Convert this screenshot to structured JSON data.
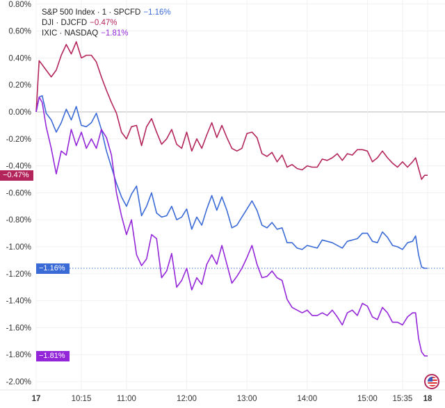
{
  "chart_data": {
    "type": "line",
    "legend_placement": "top-left",
    "grid": true,
    "ylim": [
      -2.0,
      0.8
    ],
    "y_ticks": [
      "0.80%",
      "0.60%",
      "0.40%",
      "0.20%",
      "0.00%",
      "-0.20%",
      "-0.40%",
      "-0.60%",
      "-0.80%",
      "-1.00%",
      "-1.20%",
      "-1.40%",
      "-1.60%",
      "-1.80%",
      "-2.00%"
    ],
    "x_ticks": [
      {
        "label": "17",
        "time": "09:30",
        "bold": true
      },
      {
        "label": "10:15",
        "time": "10:15"
      },
      {
        "label": "11:00",
        "time": "11:00"
      },
      {
        "label": "12:00",
        "time": "12:00"
      },
      {
        "label": "13:00",
        "time": "13:00"
      },
      {
        "label": "14:00",
        "time": "14:00"
      },
      {
        "label": "15:00",
        "time": "15:00"
      },
      {
        "label": "15:35",
        "time": "15:35"
      },
      {
        "label": "18",
        "time": "16:00",
        "bold": true
      }
    ],
    "x": [
      "09:30",
      "09:33",
      "09:36",
      "09:40",
      "09:45",
      "09:50",
      "09:55",
      "10:00",
      "10:05",
      "10:10",
      "10:15",
      "10:20",
      "10:25",
      "10:30",
      "10:35",
      "10:40",
      "10:45",
      "10:50",
      "10:55",
      "11:00",
      "11:05",
      "11:10",
      "11:15",
      "11:20",
      "11:25",
      "11:30",
      "11:35",
      "11:40",
      "11:45",
      "11:50",
      "11:55",
      "12:00",
      "12:05",
      "12:10",
      "12:15",
      "12:20",
      "12:25",
      "12:30",
      "12:35",
      "12:40",
      "12:45",
      "12:50",
      "12:55",
      "13:00",
      "13:05",
      "13:10",
      "13:15",
      "13:20",
      "13:25",
      "13:30",
      "13:35",
      "13:40",
      "13:45",
      "13:50",
      "13:55",
      "14:00",
      "14:05",
      "14:10",
      "14:15",
      "14:20",
      "14:25",
      "14:30",
      "14:35",
      "14:40",
      "14:45",
      "14:50",
      "14:55",
      "15:00",
      "15:05",
      "15:10",
      "15:15",
      "15:20",
      "15:25",
      "15:30",
      "15:35",
      "15:40",
      "15:45",
      "15:48",
      "15:51",
      "15:54",
      "15:57",
      "16:00"
    ],
    "series": [
      {
        "name": "S&P 500 Index · 1 · SPCFD",
        "change": "−1.16%",
        "last": "−1.16%",
        "color": "#3a6ad6",
        "values": [
          0,
          0.11,
          0.12,
          -0.01,
          -0.06,
          -0.15,
          -0.08,
          0.02,
          -0.06,
          0.04,
          -0.1,
          -0.11,
          -0.08,
          -0.01,
          -0.13,
          -0.29,
          -0.41,
          -0.53,
          -0.63,
          -0.7,
          -0.61,
          -0.55,
          -0.77,
          -0.7,
          -0.6,
          -0.75,
          -0.78,
          -0.77,
          -0.7,
          -0.8,
          -0.78,
          -0.72,
          -0.87,
          -0.78,
          -0.84,
          -0.72,
          -0.62,
          -0.73,
          -0.63,
          -0.73,
          -0.86,
          -0.84,
          -0.78,
          -0.72,
          -0.66,
          -0.73,
          -0.84,
          -0.86,
          -0.82,
          -0.87,
          -0.86,
          -0.97,
          -0.97,
          -1.01,
          -1.02,
          -0.99,
          -1.0,
          -1.01,
          -0.95,
          -0.96,
          -0.97,
          -0.99,
          -1.01,
          -0.96,
          -0.95,
          -0.94,
          -0.9,
          -0.9,
          -0.96,
          -0.97,
          -0.89,
          -0.93,
          -0.99,
          -1.0,
          -1.02,
          -0.97,
          -0.96,
          -0.92,
          -1.06,
          -1.15,
          -1.16,
          -1.16
        ]
      },
      {
        "name": "DJI · DJCFD",
        "change": "−0.47%",
        "last": "−0.47%",
        "color": "#b3245a",
        "values": [
          0,
          0.38,
          0.35,
          0.31,
          0.26,
          0.31,
          0.42,
          0.5,
          0.43,
          0.52,
          0.4,
          0.42,
          0.42,
          0.37,
          0.26,
          0.16,
          0.07,
          -0.01,
          -0.15,
          -0.2,
          -0.11,
          -0.1,
          -0.25,
          -0.11,
          -0.05,
          -0.15,
          -0.24,
          -0.2,
          -0.13,
          -0.24,
          -0.27,
          -0.15,
          -0.29,
          -0.2,
          -0.27,
          -0.17,
          -0.08,
          -0.19,
          -0.1,
          -0.19,
          -0.27,
          -0.29,
          -0.27,
          -0.16,
          -0.15,
          -0.19,
          -0.31,
          -0.33,
          -0.3,
          -0.37,
          -0.32,
          -0.41,
          -0.39,
          -0.42,
          -0.43,
          -0.4,
          -0.41,
          -0.41,
          -0.35,
          -0.36,
          -0.34,
          -0.31,
          -0.36,
          -0.31,
          -0.32,
          -0.28,
          -0.28,
          -0.29,
          -0.37,
          -0.34,
          -0.29,
          -0.34,
          -0.38,
          -0.41,
          -0.37,
          -0.41,
          -0.37,
          -0.34,
          -0.42,
          -0.5,
          -0.47,
          -0.47
        ]
      },
      {
        "name": "IXIC · NASDAQ",
        "change": "−1.81%",
        "last": "−1.81%",
        "color": "#9426d9",
        "values": [
          0,
          0.11,
          0.07,
          -0.11,
          -0.27,
          -0.46,
          -0.29,
          -0.32,
          -0.13,
          -0.25,
          -0.15,
          -0.27,
          -0.2,
          -0.27,
          -0.13,
          -0.19,
          -0.32,
          -0.6,
          -0.77,
          -0.91,
          -0.8,
          -1.06,
          -1.14,
          -1.09,
          -0.91,
          -0.94,
          -1.23,
          -1.18,
          -1.05,
          -1.3,
          -1.25,
          -1.16,
          -1.32,
          -1.23,
          -1.28,
          -1.13,
          -1.06,
          -1.13,
          -0.99,
          -1.13,
          -1.27,
          -1.22,
          -1.16,
          -1.08,
          -0.99,
          -1.13,
          -1.23,
          -1.22,
          -1.18,
          -1.23,
          -1.25,
          -1.39,
          -1.45,
          -1.47,
          -1.49,
          -1.47,
          -1.51,
          -1.51,
          -1.49,
          -1.51,
          -1.47,
          -1.52,
          -1.58,
          -1.49,
          -1.47,
          -1.51,
          -1.42,
          -1.44,
          -1.52,
          -1.54,
          -1.45,
          -1.49,
          -1.56,
          -1.56,
          -1.58,
          -1.52,
          -1.49,
          -1.49,
          -1.68,
          -1.78,
          -1.81,
          -1.81
        ]
      }
    ]
  },
  "legend": {
    "spx_name": "S&P 500 Index · 1 · SPCFD",
    "spx_change": "−1.16%",
    "dji_name": "DJI · DJCFD",
    "dji_change": "−0.47%",
    "ixic_name": "IXIC · NASDAQ",
    "ixic_change": "−1.81%"
  },
  "badges": {
    "dji": "−0.47%",
    "spx": "−1.16%",
    "ixic": "−1.81%"
  },
  "icons": {
    "market_flag": "us-flag-icon"
  }
}
